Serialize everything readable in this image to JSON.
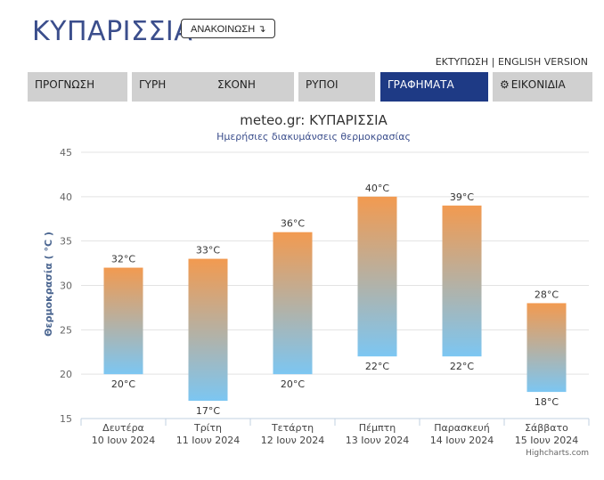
{
  "header": {
    "title": "ΚΥΠΑΡΙΣΣΙΑ",
    "announce_label": "ΑΝΑΚΟΙΝΩΣΗ",
    "announce_icon": "arrow-icon",
    "print_label": "ΕΚΤΥΠΩΣΗ",
    "separator": "|",
    "english_label": "ENGLISH VERSION"
  },
  "nav": {
    "tabs": [
      {
        "label": "ΠΡΟΓΝΩΣΗ",
        "active": false
      },
      {
        "label": "ΓΥΡΗ",
        "active": false
      },
      {
        "label": "ΣΚΟΝΗ",
        "active": false
      },
      {
        "label": "ΡΥΠΟΙ",
        "active": false
      },
      {
        "label": "ΓΡΑΦΗΜΑΤΑ",
        "active": true
      },
      {
        "label": "ΕΙΚΟΝΙΔΙΑ",
        "active": false,
        "icon": "gear-icon"
      }
    ]
  },
  "colors": {
    "brand": "#3b4e8c",
    "active_tab": "#1e3a85",
    "bar_top": "#f29a50",
    "bar_bottom": "#7cc6f2"
  },
  "chart_data": {
    "type": "bar",
    "subtype": "columnrange",
    "title": "meteo.gr: ΚΥΠΑΡΙΣΣΙΑ",
    "subtitle": "Ημερήσιες διακυμάνσεις θερμοκρασίας",
    "ylabel": "Θερμοκρασία ( °C )",
    "ylim": [
      15,
      45
    ],
    "yticks": [
      15,
      20,
      25,
      30,
      35,
      40,
      45
    ],
    "grid": true,
    "unit": "°C",
    "categories": [
      {
        "day": "Δευτέρα",
        "date": "10 Ιουν 2024"
      },
      {
        "day": "Τρίτη",
        "date": "11 Ιουν 2024"
      },
      {
        "day": "Τετάρτη",
        "date": "12 Ιουν 2024"
      },
      {
        "day": "Πέμπτη",
        "date": "13 Ιουν 2024"
      },
      {
        "day": "Παρασκευή",
        "date": "14 Ιουν 2024"
      },
      {
        "day": "Σάββατο",
        "date": "15 Ιουν 2024"
      }
    ],
    "low": [
      20,
      17,
      20,
      22,
      22,
      18
    ],
    "high": [
      32,
      33,
      36,
      40,
      39,
      28
    ],
    "credits": "Highcharts.com"
  }
}
